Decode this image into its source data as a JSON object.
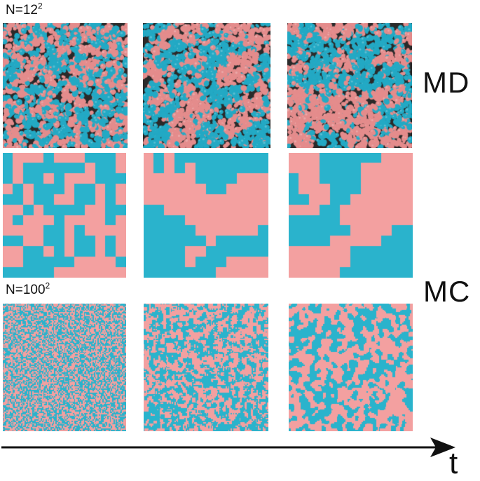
{
  "labels": {
    "md_grid_size_prefix": "N=12",
    "md_grid_size_exp": "2",
    "mc_grid_size_prefix": "N=100",
    "mc_grid_size_exp": "2",
    "row_md": "MD",
    "row_mc": "MC",
    "time_axis": "t"
  },
  "colors": {
    "pink": "#f3a0a0",
    "cyan": "#2ab3cc",
    "md_pink": "#e48c8c",
    "md_cyan": "#23a9c4",
    "dark": "#2a2a2a",
    "axis": "#111111"
  },
  "grids": {
    "md_lattice_size": 12,
    "mc_lattice_size": 100,
    "pink_fraction_by_time": [
      0.5,
      0.5,
      0.55
    ],
    "panels": [
      {
        "id": "md-t1",
        "kind": "md",
        "time_index": 0
      },
      {
        "id": "md-t2",
        "kind": "md",
        "time_index": 1
      },
      {
        "id": "md-t3",
        "kind": "md",
        "time_index": 2
      },
      {
        "id": "coarse-t1",
        "kind": "coarse",
        "time_index": 0
      },
      {
        "id": "coarse-t2",
        "kind": "coarse",
        "time_index": 1
      },
      {
        "id": "coarse-t3",
        "kind": "coarse",
        "time_index": 2
      },
      {
        "id": "mc-t1",
        "kind": "mc",
        "time_index": 0
      },
      {
        "id": "mc-t2",
        "kind": "mc",
        "time_index": 1
      },
      {
        "id": "mc-t3",
        "kind": "mc",
        "time_index": 2
      }
    ]
  }
}
